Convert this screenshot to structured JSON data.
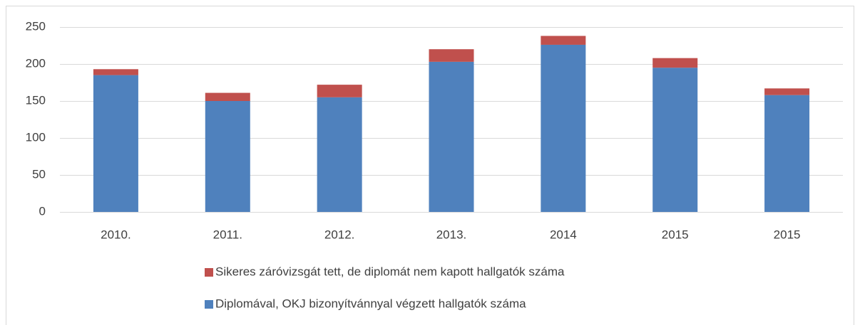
{
  "chart_data": {
    "type": "stacked_bar",
    "categories": [
      "2010.",
      "2011.",
      "2012.",
      "2013.",
      "2014",
      "2015",
      "2015"
    ],
    "series": [
      {
        "name": "Diplomával, OKJ bizonyítvánnyal végzett hallgatók száma",
        "color": "#4f81bd",
        "values": [
          185,
          150,
          155,
          203,
          226,
          195,
          158
        ]
      },
      {
        "name": "Sikeres záróvizsgát tett, de diplomát nem kapott hallgatók száma",
        "color": "#c0504d",
        "values": [
          8,
          11,
          17,
          17,
          12,
          13,
          9
        ]
      }
    ],
    "ylim": [
      0,
      250
    ],
    "yticks": [
      0,
      50,
      100,
      150,
      200,
      250
    ],
    "grid": true
  }
}
